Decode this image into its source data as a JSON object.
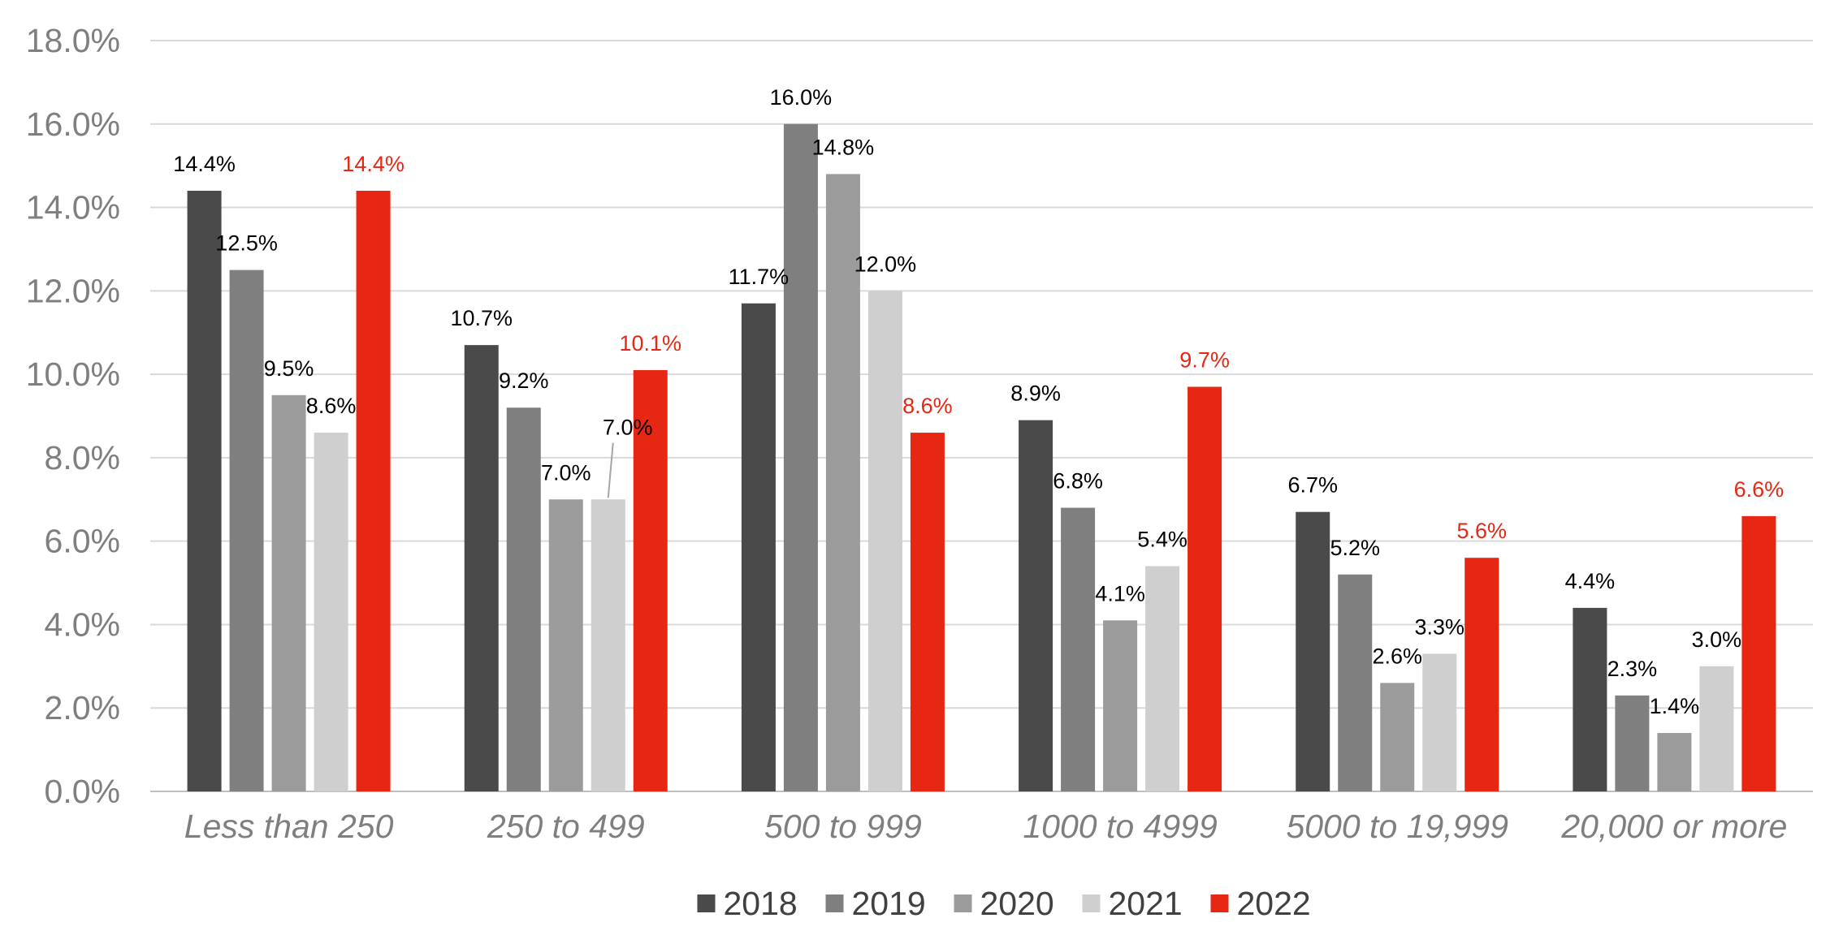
{
  "chart_data": {
    "type": "bar",
    "title": "",
    "xlabel": "",
    "ylabel": "",
    "ylim": [
      0,
      18
    ],
    "ytick_labels": [
      "0.0%",
      "2.0%",
      "4.0%",
      "6.0%",
      "8.0%",
      "10.0%",
      "12.0%",
      "14.0%",
      "16.0%",
      "18.0%"
    ],
    "grid": true,
    "legend_position": "bottom",
    "categories": [
      "Less than 250",
      "250 to 499",
      "500 to 999",
      "1000 to 4999",
      "5000 to 19,999",
      "20,000 or more"
    ],
    "series": [
      {
        "name": "2018",
        "color": "#4a4a4a",
        "label_color": "#000000",
        "values": [
          14.4,
          10.7,
          11.7,
          8.9,
          6.7,
          4.4
        ],
        "labels": [
          "14.4%",
          "10.7%",
          "11.7%",
          "8.9%",
          "6.7%",
          "4.4%"
        ]
      },
      {
        "name": "2019",
        "color": "#7f7f7f",
        "label_color": "#000000",
        "values": [
          12.5,
          9.2,
          16.0,
          6.8,
          5.2,
          2.3
        ],
        "labels": [
          "12.5%",
          "9.2%",
          "16.0%",
          "6.8%",
          "5.2%",
          "2.3%"
        ]
      },
      {
        "name": "2020",
        "color": "#9b9b9b",
        "label_color": "#000000",
        "values": [
          9.5,
          7.0,
          14.8,
          4.1,
          2.6,
          1.4
        ],
        "labels": [
          "9.5%",
          "7.0%",
          "14.8%",
          "4.1%",
          "2.6%",
          "1.4%"
        ]
      },
      {
        "name": "2021",
        "color": "#cfcfcf",
        "label_color": "#000000",
        "values": [
          8.6,
          7.0,
          12.0,
          5.4,
          3.3,
          3.0
        ],
        "labels": [
          "8.6%",
          "7.0%",
          "12.0%",
          "5.4%",
          "3.3%",
          "3.0%"
        ]
      },
      {
        "name": "2022",
        "color": "#e52713",
        "label_color": "#e52713",
        "values": [
          14.4,
          10.1,
          8.6,
          9.7,
          5.6,
          6.6
        ],
        "labels": [
          "14.4%",
          "10.1%",
          "8.6%",
          "9.7%",
          "5.6%",
          "6.6%"
        ]
      }
    ]
  }
}
